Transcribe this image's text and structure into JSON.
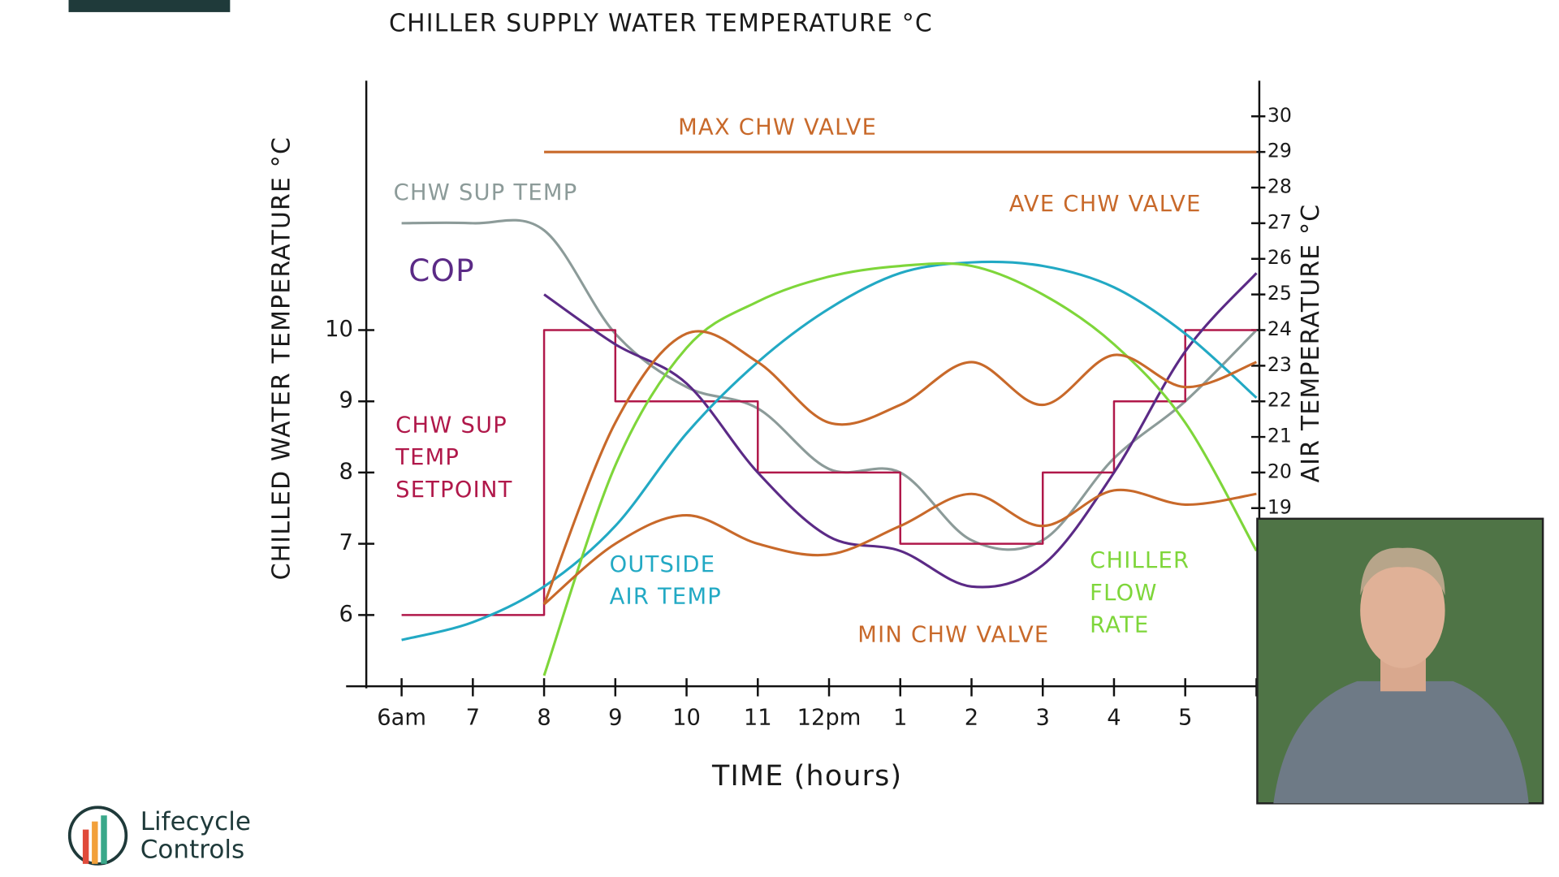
{
  "chart_data": {
    "type": "line",
    "title": "CHILLER SUPPLY WATER TEMPERATURE °C",
    "y_label": "CHILLED WATER TEMPERATURE °C",
    "y2_label": "AIR TEMPERATURE °C",
    "x_label": "TIME (hours)",
    "categories": [
      "6am",
      "7",
      "8",
      "9",
      "10",
      "11",
      "12pm",
      "1",
      "2",
      "3",
      "4",
      "5",
      null
    ],
    "ylim": [
      5,
      13.5
    ],
    "yticks": [
      6,
      7,
      8,
      9,
      10
    ],
    "y2lim": [
      14,
      31
    ],
    "y2ticks": [
      19,
      20,
      21,
      22,
      23,
      24,
      25,
      26,
      27,
      28,
      29,
      30
    ],
    "series": [
      {
        "name": "CHW SUP TEMP",
        "color": "#8c9b99",
        "values": [
          11.5,
          11.5,
          11.4,
          9.95,
          9.2,
          8.9,
          8.05,
          8.0,
          7.05,
          7.05,
          8.2,
          9.0,
          10.0
        ]
      },
      {
        "name": "CHW SUP TEMP SETPOINT",
        "color": "#b0184a",
        "step": true,
        "values": [
          6,
          6,
          10,
          9,
          9,
          8,
          8,
          7,
          7,
          8,
          9,
          10,
          10
        ]
      },
      {
        "name": "COP",
        "color": "#5b2a86",
        "values": [
          null,
          null,
          10.5,
          9.8,
          9.25,
          8.0,
          7.1,
          6.9,
          6.4,
          6.7,
          8.0,
          9.7,
          10.8
        ]
      },
      {
        "name": "OUTSIDE AIR TEMP",
        "color": "#22a9c4",
        "axis": "y2",
        "values": [
          15.3,
          15.8,
          16.8,
          18.5,
          21.1,
          23.1,
          24.6,
          25.6,
          25.9,
          25.8,
          25.2,
          23.9,
          22.1
        ]
      },
      {
        "name": "CHILLER FLOW RATE",
        "color": "#7ed63a",
        "axis": "y2",
        "values": [
          null,
          null,
          14.3,
          20.2,
          23.5,
          24.8,
          25.5,
          25.8,
          25.8,
          25.0,
          23.6,
          21.4,
          17.8
        ]
      },
      {
        "name": "MAX CHW VALVE",
        "color": "#c8692a",
        "axis": "y2",
        "values": [
          null,
          null,
          29,
          29,
          29,
          29,
          29,
          29,
          29,
          29,
          29,
          29,
          29
        ]
      },
      {
        "name": "AVE CHW VALVE",
        "color": "#c8692a",
        "axis": "y2",
        "values": [
          null,
          null,
          16.3,
          21.4,
          23.9,
          23.1,
          21.4,
          21.9,
          23.1,
          21.9,
          23.3,
          22.4,
          23.1
        ]
      },
      {
        "name": "MIN CHW VALVE",
        "color": "#c8692a",
        "axis": "y2",
        "values": [
          null,
          null,
          16.3,
          18.0,
          18.8,
          18.0,
          17.7,
          18.5,
          19.4,
          18.5,
          19.5,
          19.1,
          19.4
        ]
      }
    ]
  },
  "brand": [
    "Lifecycle",
    "Controls"
  ]
}
